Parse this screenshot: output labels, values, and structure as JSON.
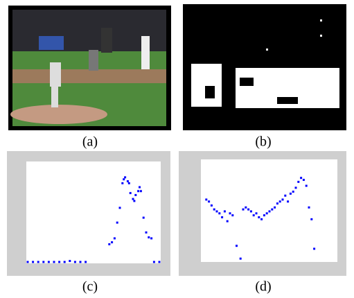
{
  "figure": {
    "labels": [
      "(a)",
      "(b)",
      "(c)",
      "(d)"
    ]
  },
  "chart_data": [
    {
      "type": "scatter",
      "color": "#0000ff",
      "xlim": [
        0,
        100
      ],
      "ylim": [
        0,
        100
      ],
      "x": [
        0,
        4,
        8,
        12,
        16,
        20,
        24,
        28,
        32,
        36,
        40,
        44,
        62,
        64,
        66,
        68,
        70,
        72,
        73,
        74,
        76,
        77,
        78,
        80,
        81,
        82,
        84,
        85,
        86,
        88,
        90,
        92,
        94,
        96,
        100
      ],
      "values": [
        0,
        0,
        0,
        0,
        0,
        0,
        0,
        0,
        1,
        0,
        0,
        0,
        18,
        20,
        24,
        40,
        55,
        80,
        84,
        86,
        82,
        80,
        70,
        64,
        62,
        68,
        72,
        76,
        72,
        45,
        30,
        25,
        24,
        0,
        0
      ]
    },
    {
      "type": "scatter",
      "color": "#0000ff",
      "xlim": [
        0,
        100
      ],
      "ylim": [
        0,
        100
      ],
      "x": [
        2,
        4,
        6,
        8,
        10,
        12,
        14,
        16,
        18,
        20,
        22,
        25,
        28,
        30,
        32,
        34,
        36,
        38,
        40,
        42,
        44,
        46,
        48,
        50,
        52,
        54,
        56,
        58,
        60,
        62,
        64,
        66,
        68,
        70,
        72,
        74,
        76,
        78,
        80,
        82,
        84
      ],
      "values": [
        62,
        60,
        56,
        52,
        50,
        48,
        44,
        50,
        40,
        48,
        46,
        15,
        2,
        52,
        54,
        52,
        50,
        46,
        48,
        44,
        42,
        46,
        48,
        50,
        52,
        54,
        58,
        60,
        62,
        66,
        60,
        68,
        70,
        74,
        80,
        84,
        82,
        76,
        54,
        42,
        12
      ]
    }
  ]
}
